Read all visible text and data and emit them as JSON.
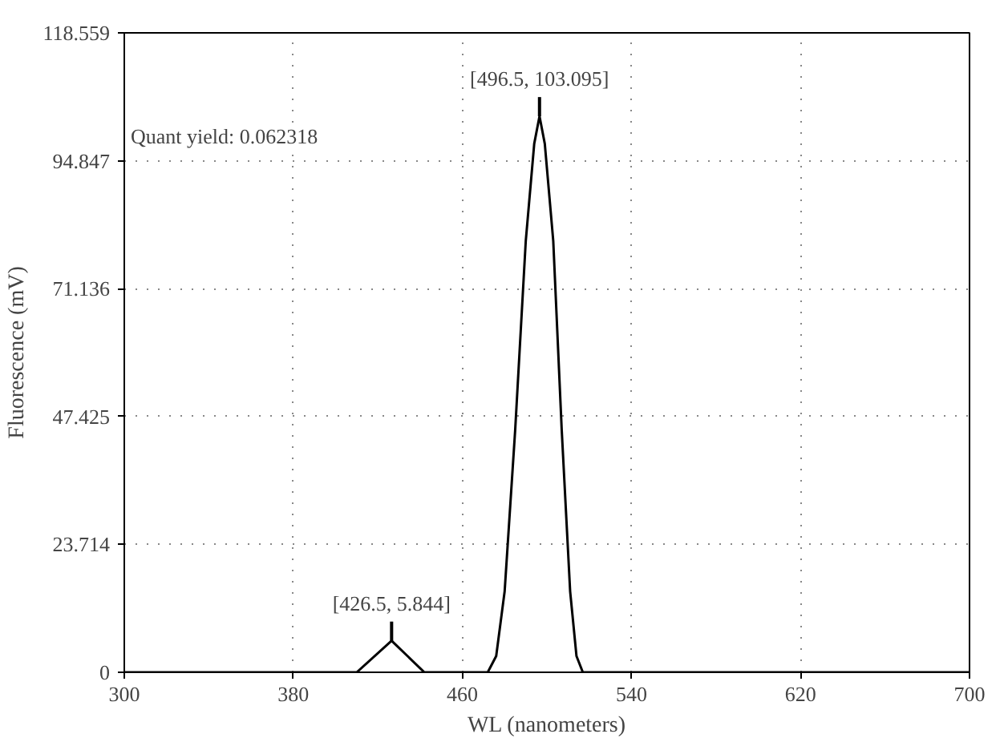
{
  "chart_data": {
    "type": "line",
    "xlabel": "WL (nanometers)",
    "ylabel": "Fluorescence (mV)",
    "x": [
      300,
      410,
      426.5,
      442,
      472,
      476,
      480,
      485,
      490,
      494,
      496.5,
      499,
      503,
      507,
      511,
      514,
      517,
      700
    ],
    "series": [
      {
        "color": "#000000",
        "values": [
          0,
          0,
          5.844,
          0,
          0,
          3,
          15,
          45,
          80,
          98,
          103.095,
          98,
          80,
          45,
          15,
          3,
          0,
          0
        ]
      }
    ],
    "xlim": [
      300,
      700
    ],
    "ylim": [
      0,
      118.559
    ],
    "xticks": [
      300,
      380,
      460,
      540,
      620,
      700
    ],
    "yticks": [
      0,
      23.714,
      47.425,
      71.136,
      94.847,
      118.559
    ],
    "grid": true,
    "line_style": "solid",
    "marker": "none",
    "annotations": [
      {
        "text": "[426.5, 5.844]",
        "x": 426.5,
        "y": 5.844
      },
      {
        "text": "[496.5, 103.095]",
        "x": 496.5,
        "y": 103.095
      },
      "Quant yield: 0.062318"
    ]
  }
}
